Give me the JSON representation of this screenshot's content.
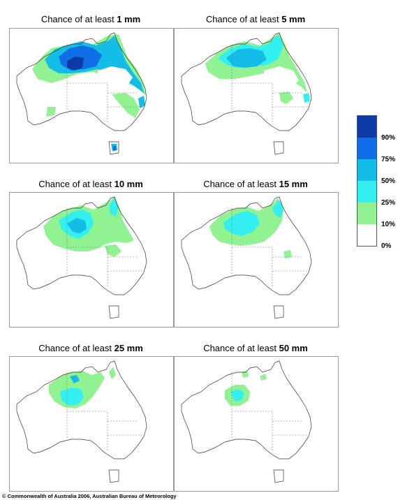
{
  "panels": [
    {
      "prefix": "Chance of at least ",
      "value": "1 mm"
    },
    {
      "prefix": "Chance of at least ",
      "value": "5 mm"
    },
    {
      "prefix": "Chance of at least ",
      "value": "10 mm"
    },
    {
      "prefix": "Chance of at least ",
      "value": "15 mm"
    },
    {
      "prefix": "Chance of at least ",
      "value": "25 mm"
    },
    {
      "prefix": "Chance of at least ",
      "value": "50 mm"
    }
  ],
  "legend": {
    "labels": [
      "90%",
      "75%",
      "50%",
      "25%",
      "10%",
      "0%"
    ],
    "colors": [
      "#0d3ba6",
      "#0f6ee8",
      "#14bde8",
      "#33efef",
      "#91f291",
      "#ffffff"
    ]
  },
  "copyright": "© Commonwealth of Australia 2006, Australian Bureau of Meteorology"
}
